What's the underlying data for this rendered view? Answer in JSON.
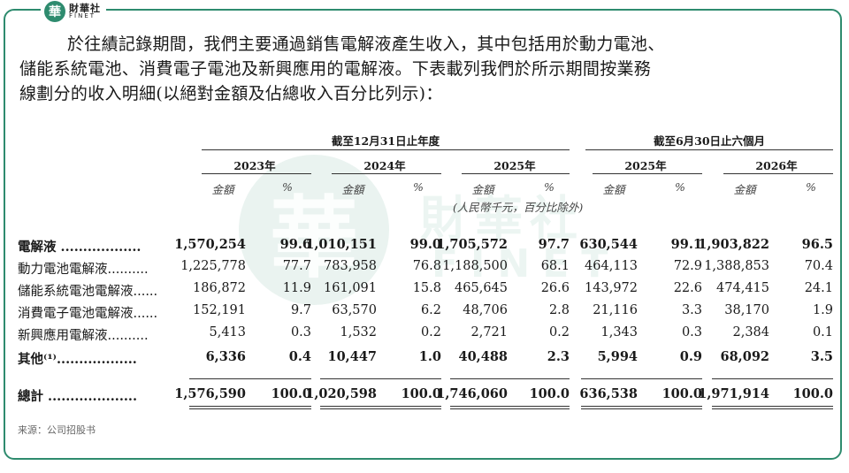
{
  "logo": {
    "mark": "華",
    "name_cn": "財華社",
    "name_en": "FINET"
  },
  "watermark": {
    "mark": "華",
    "cn": "財華社",
    "en": "FINET"
  },
  "paragraph": [
    "於往績記錄期間，我們主要通過銷售電解液產生收入，其中包括用於動力電池、",
    "儲能系統電池、消費電子電池及新興應用的電解液。下表載列我們於所示期間按業務",
    "線劃分的收入明細(以絕對金額及佔總收入百分比列示)："
  ],
  "table": {
    "group_headers": [
      "截至12月31日止年度",
      "截至6月30日止六個月"
    ],
    "periods": [
      "2023年",
      "2024年",
      "2025年",
      "2025年",
      "2026年"
    ],
    "amount_label": "金額",
    "pct_label": "%",
    "unit_note": "(人民幣千元，百分比除外)",
    "rows": [
      {
        "label": "電解液 ..................",
        "bold": true,
        "values": [
          "1,570,254",
          "99.6",
          "1,010,151",
          "99.0",
          "1,705,572",
          "97.7",
          "630,544",
          "99.1",
          "1,903,822",
          "96.5"
        ]
      },
      {
        "label": "動力電池電解液..........",
        "bold": false,
        "values": [
          "1,225,778",
          "77.7",
          "783,958",
          "76.8",
          "1,188,500",
          "68.1",
          "464,113",
          "72.9",
          "1,388,853",
          "70.4"
        ]
      },
      {
        "label": "儲能系統電池電解液......",
        "bold": false,
        "values": [
          "186,872",
          "11.9",
          "161,091",
          "15.8",
          "465,645",
          "26.6",
          "143,972",
          "22.6",
          "474,415",
          "24.1"
        ]
      },
      {
        "label": "消費電子電池電解液......",
        "bold": false,
        "values": [
          "152,191",
          "9.7",
          "63,570",
          "6.2",
          "48,706",
          "2.8",
          "21,116",
          "3.3",
          "38,170",
          "1.9"
        ]
      },
      {
        "label": "新興應用電解液..........",
        "bold": false,
        "values": [
          "5,413",
          "0.3",
          "1,532",
          "0.2",
          "2,721",
          "0.2",
          "1,343",
          "0.3",
          "2,384",
          "0.1"
        ]
      },
      {
        "label": "其他⁽¹⁾..................",
        "bold": true,
        "values": [
          "6,336",
          "0.4",
          "10,447",
          "1.0",
          "40,488",
          "2.3",
          "5,994",
          "0.9",
          "68,092",
          "3.5"
        ]
      }
    ],
    "total": {
      "label": "總計 ....................",
      "bold": true,
      "values": [
        "1,576,590",
        "100.0",
        "1,020,598",
        "100.0",
        "1,746,060",
        "100.0",
        "636,538",
        "100.0",
        "1,971,914",
        "100.0"
      ]
    }
  },
  "source": "来源：公司招股书"
}
